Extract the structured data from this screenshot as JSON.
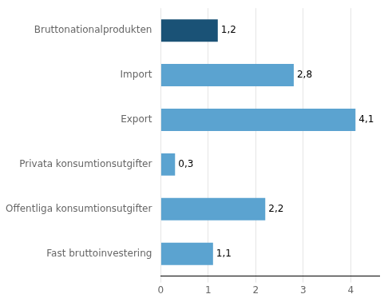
{
  "chart_data": {
    "type": "bar",
    "orientation": "horizontal",
    "categories": [
      "Fast bruttoinvestering",
      "Offentliga konsumtionsutgifter",
      "Privata konsumtionsutgifter",
      "Export",
      "Import",
      "Bruttonationalprodukten"
    ],
    "values": [
      1.1,
      2.2,
      0.3,
      4.1,
      2.8,
      1.2
    ],
    "value_labels": [
      "1,1",
      "2,2",
      "0,3",
      "4,1",
      "2,8",
      "1,2"
    ],
    "colors": [
      "#5ba3d0",
      "#5ba3d0",
      "#5ba3d0",
      "#5ba3d0",
      "#5ba3d0",
      "#1a5276"
    ],
    "xlim": [
      0,
      4.6
    ],
    "xticks": [
      0,
      1,
      2,
      3,
      4
    ],
    "grid": true,
    "data_labels": true
  }
}
